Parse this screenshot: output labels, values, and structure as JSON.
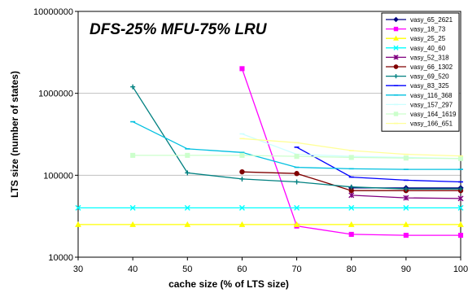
{
  "chart_data": {
    "type": "line",
    "title": "DFS-25% MFU-75% LRU",
    "xlabel": "cache size (% of LTS size)",
    "ylabel": "LTS size (number of states)",
    "x_scale": "linear",
    "y_scale": "log",
    "xlim": [
      30,
      100
    ],
    "ylim": [
      10000,
      10000000
    ],
    "x_ticks": [
      "30",
      "40",
      "50",
      "60",
      "70",
      "80",
      "90",
      "100"
    ],
    "y_ticks": [
      "10000",
      "100000",
      "1000000",
      "10000000"
    ],
    "grid": "horizontal major",
    "legend_position": "top-right",
    "series": [
      {
        "name": "vasy_65_2621",
        "color": "#000080",
        "marker": "diamond",
        "points": [
          [
            80,
            70000
          ],
          [
            90,
            70000
          ],
          [
            100,
            70000
          ]
        ]
      },
      {
        "name": "vasy_18_73",
        "color": "#ff00ff",
        "marker": "square",
        "points": [
          [
            60,
            2000000
          ],
          [
            70,
            24000
          ],
          [
            80,
            19000
          ],
          [
            90,
            18500
          ],
          [
            100,
            18500
          ]
        ]
      },
      {
        "name": "vasy_25_25",
        "color": "#ffff00",
        "marker": "triangle",
        "points": [
          [
            30,
            25000
          ],
          [
            40,
            25000
          ],
          [
            50,
            25000
          ],
          [
            60,
            25000
          ],
          [
            70,
            25000
          ],
          [
            80,
            25000
          ],
          [
            90,
            25000
          ],
          [
            100,
            25000
          ]
        ]
      },
      {
        "name": "vasy_40_60",
        "color": "#00ffff",
        "marker": "x",
        "points": [
          [
            30,
            40000
          ],
          [
            40,
            40000
          ],
          [
            50,
            40000
          ],
          [
            60,
            40000
          ],
          [
            70,
            40000
          ],
          [
            80,
            40000
          ],
          [
            90,
            40000
          ],
          [
            100,
            40000
          ]
        ]
      },
      {
        "name": "vasy_52_318",
        "color": "#800080",
        "marker": "star",
        "points": [
          [
            80,
            57000
          ],
          [
            90,
            53000
          ],
          [
            100,
            52000
          ]
        ]
      },
      {
        "name": "vasy_66_1302",
        "color": "#800000",
        "marker": "circle",
        "points": [
          [
            60,
            110000
          ],
          [
            70,
            105000
          ],
          [
            80,
            65000
          ],
          [
            90,
            65000
          ],
          [
            100,
            65000
          ]
        ]
      },
      {
        "name": "vasy_69_520",
        "color": "#008080",
        "marker": "plus",
        "points": [
          [
            40,
            1200000
          ],
          [
            50,
            107000
          ],
          [
            60,
            90000
          ],
          [
            70,
            83000
          ],
          [
            80,
            72000
          ],
          [
            90,
            68000
          ],
          [
            100,
            68000
          ]
        ]
      },
      {
        "name": "vasy_83_325",
        "color": "#0000ff",
        "marker": "dash",
        "points": [
          [
            70,
            220000
          ],
          [
            80,
            95000
          ],
          [
            90,
            87000
          ],
          [
            100,
            83000
          ]
        ]
      },
      {
        "name": "vasy_116_368",
        "color": "#00c0e0",
        "marker": "dash",
        "points": [
          [
            40,
            450000
          ],
          [
            50,
            210000
          ],
          [
            60,
            190000
          ],
          [
            70,
            125000
          ],
          [
            80,
            120000
          ],
          [
            90,
            118000
          ],
          [
            100,
            118000
          ]
        ]
      },
      {
        "name": "vasy_157_297",
        "color": "#ccffff",
        "marker": "dash",
        "points": [
          [
            60,
            320000
          ],
          [
            70,
            180000
          ],
          [
            80,
            170000
          ],
          [
            90,
            165000
          ],
          [
            100,
            160000
          ]
        ]
      },
      {
        "name": "vasy_164_1619",
        "color": "#ccffcc",
        "marker": "square",
        "points": [
          [
            40,
            175000
          ],
          [
            50,
            175000
          ],
          [
            60,
            175000
          ],
          [
            70,
            170000
          ],
          [
            80,
            165000
          ],
          [
            90,
            162000
          ],
          [
            100,
            160000
          ]
        ]
      },
      {
        "name": "vasy_166_651",
        "color": "#ffff99",
        "marker": "dash",
        "points": [
          [
            60,
            280000
          ],
          [
            70,
            250000
          ],
          [
            80,
            200000
          ],
          [
            90,
            180000
          ],
          [
            100,
            172000
          ]
        ]
      }
    ]
  }
}
